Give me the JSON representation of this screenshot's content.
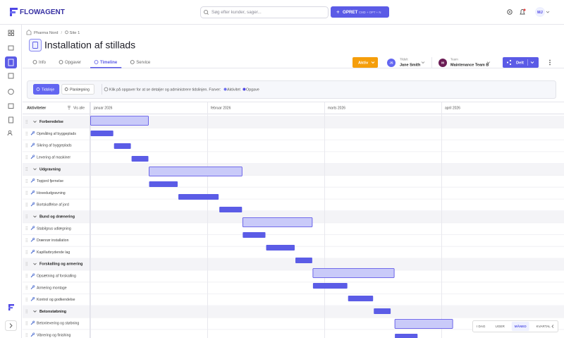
{
  "header": {
    "brand": "FLOWAGENT",
    "search_placeholder": "Søg efter kunder, sager...",
    "create_button": "OPRET",
    "create_shortcut": "CMD + OPT + N",
    "user_initials": "MJ"
  },
  "breadcrumb": [
    "Pharma Nord",
    "Site 1"
  ],
  "title": "Installation af stillads",
  "tabs": [
    {
      "label": "Info",
      "active": false
    },
    {
      "label": "Opgaver",
      "active": false
    },
    {
      "label": "Timeline",
      "active": true
    },
    {
      "label": "Service",
      "active": false
    }
  ],
  "status": "Aktiv",
  "assigned": {
    "label": "Tildelt",
    "name": "Jane Smith",
    "initials": "JS"
  },
  "team": {
    "label": "Team",
    "name": "Maintenance Team B",
    "initials": "M"
  },
  "share": "Delt",
  "toolbar": {
    "views": [
      {
        "label": "Tidslinje",
        "active": true
      },
      {
        "label": "Planlægning",
        "active": false
      }
    ],
    "hint": "Klik på opgaver for at se detaljer og administrere tidslinjen. Farver:",
    "legend": [
      {
        "label": "Aktivitet",
        "color": "#6d6ff0"
      },
      {
        "label": "Opgave",
        "color": "#4f46e5"
      }
    ]
  },
  "gantt": {
    "column_title": "Aktiviteter",
    "toggle": "Vis alle",
    "months": [
      "januar 2026",
      "februar 2026",
      "marts 2026",
      "april 2026"
    ],
    "group_color": "#c9caf9",
    "task_color": "#5b5ce6",
    "rows": [
      {
        "label": "Forberedelse",
        "group": true,
        "start": 0,
        "end": 0.5
      },
      {
        "label": "Opmåling af byggeplads",
        "group": false,
        "start": 0,
        "end": 0.2
      },
      {
        "label": "Sikring af byggeplads",
        "group": false,
        "start": 0.2,
        "end": 0.35
      },
      {
        "label": "Levering af maskiner",
        "group": false,
        "start": 0.35,
        "end": 0.5
      },
      {
        "label": "Udgravning",
        "group": true,
        "start": 0.5,
        "end": 1.3
      },
      {
        "label": "Topjord fjernelse",
        "group": false,
        "start": 0.5,
        "end": 0.75
      },
      {
        "label": "Hovedudgravning",
        "group": false,
        "start": 0.75,
        "end": 1.1
      },
      {
        "label": "Bortskaffelse af jord",
        "group": false,
        "start": 1.1,
        "end": 1.3
      },
      {
        "label": "Bund og drænering",
        "group": true,
        "start": 1.3,
        "end": 1.9
      },
      {
        "label": "Stabilgrus udlægning",
        "group": false,
        "start": 1.3,
        "end": 1.5
      },
      {
        "label": "Drænrør installation",
        "group": false,
        "start": 1.5,
        "end": 1.75
      },
      {
        "label": "Kapillarbrydende lag",
        "group": false,
        "start": 1.75,
        "end": 1.9
      },
      {
        "label": "Forskalling og armering",
        "group": true,
        "start": 1.9,
        "end": 2.6
      },
      {
        "label": "Opsætning af forskalling",
        "group": false,
        "start": 1.9,
        "end": 2.2
      },
      {
        "label": "Armering montage",
        "group": false,
        "start": 2.2,
        "end": 2.42
      },
      {
        "label": "Kontrol og godkendelse",
        "group": false,
        "start": 2.42,
        "end": 2.57
      },
      {
        "label": "Betonstøbning",
        "group": true,
        "start": 2.6,
        "end": 3.1
      },
      {
        "label": "Betonlevering og støbning",
        "group": false,
        "start": 2.6,
        "end": 2.8
      },
      {
        "label": "Vibrering og finishing",
        "group": false,
        "start": 2.8,
        "end": 3.0
      }
    ]
  },
  "zoom": [
    {
      "label": "I DAG",
      "active": false
    },
    {
      "label": "UGER",
      "active": false
    },
    {
      "label": "MÅNED",
      "active": true
    },
    {
      "label": "KVARTAL",
      "active": false
    }
  ]
}
